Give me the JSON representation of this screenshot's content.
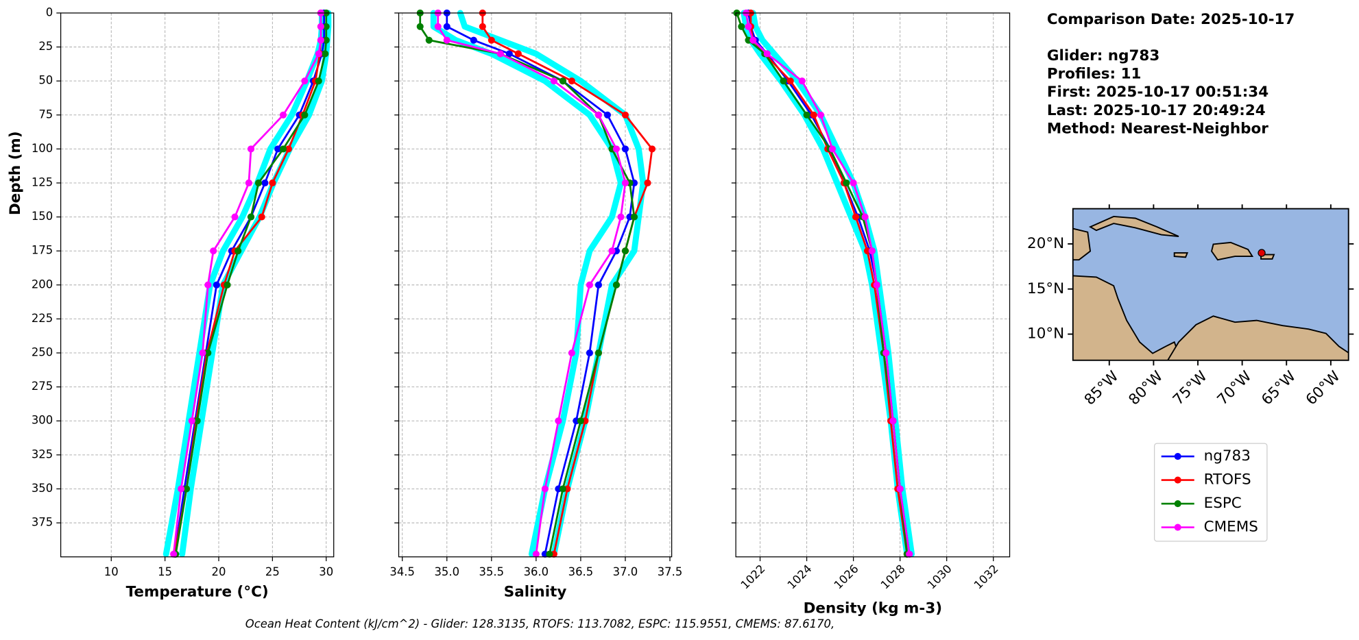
{
  "chart_data": [
    {
      "type": "line",
      "xlabel": "Temperature (°C)",
      "ylabel": "Depth (m)",
      "y": [
        0,
        10,
        20,
        30,
        50,
        75,
        100,
        125,
        150,
        175,
        200,
        250,
        300,
        350,
        398
      ],
      "xlim": [
        5.3,
        30.7
      ],
      "ylim": [
        0,
        400
      ],
      "grid": true,
      "xticks": [
        10,
        15,
        20,
        25,
        30
      ],
      "yticks": [
        0,
        25,
        50,
        75,
        100,
        125,
        150,
        175,
        200,
        225,
        250,
        275,
        300,
        325,
        350,
        375
      ],
      "series": [
        {
          "color": "#00ffff",
          "values": [
            29.6,
            29.6,
            29.5,
            29.2,
            28.2,
            26.8,
            24.8,
            23.6,
            22.2,
            20.4,
            19.2,
            18.2,
            17.2,
            16.2,
            15.1
          ]
        },
        {
          "color": "#00ffff",
          "values": [
            30.2,
            30.2,
            30.1,
            30.0,
            29.6,
            28.4,
            26.6,
            25.1,
            23.8,
            22.1,
            20.4,
            19.4,
            18.4,
            17.4,
            16.6
          ]
        },
        {
          "name": "ng783",
          "color": "#0000ff",
          "values": [
            29.8,
            29.8,
            29.8,
            29.6,
            28.8,
            27.5,
            25.5,
            24.3,
            23.0,
            21.2,
            19.8,
            18.8,
            17.8,
            16.8,
            15.9
          ]
        },
        {
          "name": "RTOFS",
          "color": "#ff0000",
          "values": [
            29.5,
            29.5,
            29.5,
            29.4,
            29.0,
            27.8,
            26.5,
            25.0,
            24.0,
            21.5,
            20.5,
            18.9,
            17.9,
            17.0,
            15.9
          ]
        },
        {
          "name": "ESPC",
          "color": "#008000",
          "values": [
            30.0,
            30.0,
            30.0,
            29.9,
            29.3,
            28.0,
            26.0,
            23.7,
            23.0,
            21.8,
            20.8,
            19.0,
            18.0,
            17.0,
            16.0
          ]
        },
        {
          "name": "CMEMS",
          "color": "#ff00ff",
          "values": [
            29.5,
            29.5,
            29.5,
            29.3,
            28.0,
            26.0,
            23.0,
            22.8,
            21.5,
            19.5,
            19.0,
            18.5,
            17.5,
            16.5,
            15.8
          ]
        }
      ]
    },
    {
      "type": "line",
      "xlabel": "Salinity",
      "y": [
        0,
        10,
        20,
        30,
        50,
        75,
        100,
        125,
        150,
        175,
        200,
        250,
        300,
        350,
        398
      ],
      "xlim": [
        34.46,
        37.52
      ],
      "ylim": [
        0,
        400
      ],
      "grid": true,
      "xticks": [
        34.5,
        {
          "value": 35,
          "label": "35.0"
        },
        35.5,
        {
          "value": 36,
          "label": "36.0"
        },
        36.5,
        {
          "value": 37,
          "label": "37.0"
        },
        37.5
      ],
      "yticks": [
        0,
        25,
        50,
        75,
        100,
        125,
        150,
        175,
        200,
        225,
        250,
        275,
        300,
        325,
        350,
        375
      ],
      "series": [
        {
          "color": "#00ffff",
          "values": [
            34.85,
            34.85,
            35.1,
            35.5,
            36.1,
            36.6,
            36.85,
            36.95,
            36.85,
            36.6,
            36.5,
            36.45,
            36.3,
            36.1,
            35.95
          ]
        },
        {
          "color": "#00ffff",
          "values": [
            35.15,
            35.2,
            35.6,
            36.0,
            36.5,
            37.0,
            37.15,
            37.2,
            37.15,
            37.1,
            36.85,
            36.7,
            36.55,
            36.35,
            36.2
          ]
        },
        {
          "name": "ng783",
          "color": "#0000ff",
          "values": [
            35.0,
            35.0,
            35.3,
            35.7,
            36.3,
            36.8,
            37.0,
            37.1,
            37.05,
            36.9,
            36.7,
            36.6,
            36.45,
            36.25,
            36.1
          ]
        },
        {
          "name": "RTOFS",
          "color": "#ff0000",
          "values": [
            35.4,
            35.4,
            35.5,
            35.8,
            36.4,
            37.0,
            37.3,
            37.25,
            37.1,
            37.0,
            36.9,
            36.7,
            36.55,
            36.35,
            36.2
          ]
        },
        {
          "name": "ESPC",
          "color": "#008000",
          "values": [
            34.7,
            34.7,
            34.8,
            35.6,
            36.3,
            36.7,
            36.85,
            37.05,
            37.1,
            37.0,
            36.9,
            36.7,
            36.5,
            36.3,
            36.15
          ]
        },
        {
          "name": "CMEMS",
          "color": "#ff00ff",
          "values": [
            34.9,
            34.9,
            35.0,
            35.6,
            36.2,
            36.7,
            36.9,
            37.0,
            36.95,
            36.85,
            36.6,
            36.4,
            36.25,
            36.1,
            36.0
          ]
        }
      ]
    },
    {
      "type": "line",
      "xlabel": "Density (kg m-3)",
      "xtick_rotation": 45,
      "y": [
        0,
        10,
        20,
        30,
        50,
        75,
        100,
        125,
        150,
        175,
        200,
        250,
        300,
        350,
        398
      ],
      "xlim": [
        1020.96,
        1032.7
      ],
      "ylim": [
        0,
        400
      ],
      "grid": true,
      "xticks": [
        1022,
        1024,
        1026,
        1028,
        1030,
        1032
      ],
      "yticks": [
        0,
        25,
        50,
        75,
        100,
        125,
        150,
        175,
        200,
        225,
        250,
        275,
        300,
        325,
        350,
        375
      ],
      "series": [
        {
          "color": "#00ffff",
          "values": [
            1021.3,
            1021.4,
            1021.6,
            1022.0,
            1022.9,
            1023.9,
            1024.7,
            1025.3,
            1025.9,
            1026.5,
            1026.8,
            1027.2,
            1027.6,
            1027.9,
            1028.3
          ]
        },
        {
          "color": "#00ffff",
          "values": [
            1021.7,
            1021.8,
            1022.1,
            1022.6,
            1023.6,
            1024.6,
            1025.3,
            1026.0,
            1026.5,
            1026.9,
            1027.1,
            1027.5,
            1027.8,
            1028.1,
            1028.5
          ]
        },
        {
          "name": "ng783",
          "color": "#0000ff",
          "values": [
            1021.5,
            1021.6,
            1021.8,
            1022.3,
            1023.2,
            1024.2,
            1025.0,
            1025.6,
            1026.2,
            1026.7,
            1027.0,
            1027.4,
            1027.7,
            1028.0,
            1028.4
          ]
        },
        {
          "name": "RTOFS",
          "color": "#ff0000",
          "values": [
            1021.6,
            1021.6,
            1021.7,
            1022.2,
            1023.3,
            1024.3,
            1024.9,
            1025.6,
            1026.1,
            1026.6,
            1026.9,
            1027.3,
            1027.6,
            1027.9,
            1028.3
          ]
        },
        {
          "name": "ESPC",
          "color": "#008000",
          "values": [
            1021.0,
            1021.2,
            1021.5,
            1022.2,
            1023.0,
            1024.0,
            1025.0,
            1025.7,
            1026.4,
            1026.8,
            1027.0,
            1027.3,
            1027.7,
            1028.0,
            1028.3
          ]
        },
        {
          "name": "CMEMS",
          "color": "#ff00ff",
          "values": [
            1021.4,
            1021.5,
            1021.7,
            1022.3,
            1023.8,
            1024.6,
            1025.1,
            1026.0,
            1026.5,
            1026.8,
            1027.0,
            1027.4,
            1027.7,
            1028.0,
            1028.4
          ]
        }
      ]
    },
    {
      "type": "map",
      "xlim": [
        -89.1,
        -58
      ],
      "ylim": [
        7.1,
        23.9
      ],
      "xticks": [
        {
          "value": -85,
          "label": "85°W"
        },
        {
          "value": -80,
          "label": "80°W"
        },
        {
          "value": -75,
          "label": "75°W"
        },
        {
          "value": -70,
          "label": "70°W"
        },
        {
          "value": -65,
          "label": "65°W"
        },
        {
          "value": -60,
          "label": "60°W"
        }
      ],
      "yticks": [
        {
          "value": 10,
          "label": "10°N"
        },
        {
          "value": 15,
          "label": "15°N"
        },
        {
          "value": 20,
          "label": "20°N"
        }
      ],
      "marker": {
        "lon": -67.8,
        "lat": 19.0,
        "color": "#e00000"
      }
    }
  ],
  "text_block": [
    "Comparison Date: 2025-10-17",
    "Glider: ng783",
    "Profiles: 11",
    "First: 2025-10-17 00:51:34",
    "Last: 2025-10-17 20:49:24",
    "Method: Nearest-Neighbor"
  ],
  "footer": "Ocean Heat Content (kJ/cm^2) - Glider: 128.3135,  RTOFS: 113.7082,  ESPC: 115.9551,  CMEMS: 87.6170,"
}
